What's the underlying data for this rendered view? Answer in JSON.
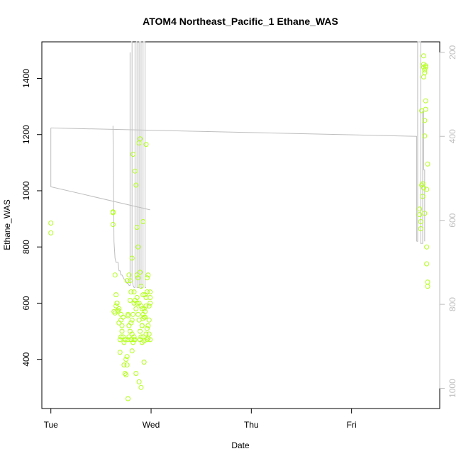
{
  "chart_data": {
    "type": "scatter",
    "title": "ATOM4 Northeast_Pacific_1 Ethane_WAS",
    "xlabel": "Date",
    "ylabel": "Ethane_WAS",
    "x_unit": "days since Tuesday 00:00",
    "xlim": [
      -0.09,
      3.88
    ],
    "ylim": [
      225,
      1530
    ],
    "x_ticks": [
      {
        "value": 0,
        "label": "Tue"
      },
      {
        "value": 1,
        "label": "Wed"
      },
      {
        "value": 2,
        "label": "Thu"
      },
      {
        "value": 3,
        "label": "Fri"
      }
    ],
    "y_ticks": [
      400,
      600,
      800,
      1000,
      1200,
      1400
    ],
    "right_axis": {
      "description": "altitude (pressure) trace, inverted",
      "ylim": [
        1048,
        175
      ],
      "ticks": [
        200,
        400,
        600,
        800,
        1000
      ]
    },
    "series": [
      {
        "name": "Ethane_WAS",
        "kind": "points",
        "color": "#b3ff1a",
        "x": [
          0.0,
          0.0,
          0.62,
          0.62,
          0.62,
          0.63,
          0.64,
          0.64,
          0.65,
          0.65,
          0.66,
          0.66,
          0.67,
          0.67,
          0.68,
          0.68,
          0.69,
          0.69,
          0.7,
          0.7,
          0.7,
          0.71,
          0.71,
          0.72,
          0.72,
          0.73,
          0.73,
          0.74,
          0.74,
          0.75,
          0.75,
          0.76,
          0.76,
          0.77,
          0.77,
          0.77,
          0.78,
          0.78,
          0.78,
          0.79,
          0.79,
          0.79,
          0.8,
          0.8,
          0.8,
          0.81,
          0.81,
          0.81,
          0.82,
          0.82,
          0.82,
          0.83,
          0.83,
          0.83,
          0.84,
          0.84,
          0.84,
          0.85,
          0.85,
          0.85,
          0.86,
          0.86,
          0.86,
          0.87,
          0.87,
          0.87,
          0.88,
          0.88,
          0.88,
          0.89,
          0.89,
          0.89,
          0.9,
          0.9,
          0.9,
          0.91,
          0.91,
          0.91,
          0.92,
          0.92,
          0.92,
          0.93,
          0.93,
          0.93,
          0.94,
          0.94,
          0.94,
          0.95,
          0.95,
          0.95,
          0.96,
          0.96,
          0.96,
          0.97,
          0.97,
          0.97,
          0.98,
          0.98,
          0.98,
          0.99,
          0.99,
          0.99,
          0.99,
          0.83,
          0.88,
          0.9,
          0.91,
          0.92,
          0.93,
          0.81,
          0.89,
          0.95,
          0.76,
          0.77,
          0.8,
          0.86,
          0.92,
          0.96,
          3.68,
          3.68,
          3.69,
          3.69,
          3.7,
          3.7,
          3.71,
          3.71,
          3.72,
          3.72,
          3.72,
          3.72,
          3.73,
          3.73,
          3.73,
          3.73,
          3.74,
          3.74,
          3.74,
          3.74,
          3.75,
          3.75,
          3.75,
          3.76,
          3.76,
          3.76,
          3.72,
          3.73
        ],
        "y": [
          885,
          850,
          925,
          922,
          880,
          570,
          565,
          700,
          590,
          630,
          600,
          600,
          575,
          570,
          580,
          530,
          470,
          425,
          480,
          560,
          540,
          520,
          500,
          550,
          480,
          460,
          380,
          350,
          470,
          345,
          400,
          410,
          380,
          260,
          470,
          560,
          520,
          480,
          700,
          500,
          680,
          610,
          470,
          530,
          640,
          490,
          540,
          760,
          460,
          560,
          1130,
          640,
          600,
          480,
          470,
          610,
          1070,
          350,
          580,
          1020,
          620,
          700,
          870,
          690,
          560,
          800,
          600,
          540,
          1170,
          470,
          500,
          1185,
          480,
          590,
          660,
          520,
          460,
          580,
          545,
          630,
          890,
          580,
          465,
          550,
          550,
          570,
          630,
          590,
          620,
          490,
          690,
          510,
          470,
          475,
          700,
          520,
          490,
          590,
          540,
          470,
          640,
          600,
          620,
          470,
          320,
          300,
          520,
          560,
          390,
          430,
          710,
          1165,
          680,
          555,
          470,
          600,
          480,
          640,
          935,
          915,
          890,
          865,
          1285,
          1020,
          1025,
          980,
          1480,
          1450,
          1440,
          1405,
          1430,
          1420,
          1250,
          1195,
          1445,
          1440,
          1290,
          1320,
          1005,
          800,
          740,
          675,
          660,
          1095,
          1010,
          920
        ],
        "marker": "open-circle"
      },
      {
        "name": "altitude",
        "kind": "line",
        "axis": "right",
        "color": "#bebebe",
        "segments": [
          {
            "x": [
              0.0,
              0.0,
              0.0,
              0.99,
              0.99
            ],
            "y": [
              380,
              380,
              520,
              575,
              575
            ]
          },
          {
            "x": [
              0.0,
              3.65,
              3.65,
              3.65
            ],
            "y": [
              380,
              400,
              400,
              650
            ]
          },
          {
            "x": [
              0.62,
              0.62,
              0.63,
              0.64,
              0.65,
              0.66,
              0.67,
              0.68,
              0.69,
              0.7,
              0.71,
              0.72,
              0.73,
              0.74,
              0.75,
              0.76,
              0.77,
              0.78
            ],
            "y": [
              375,
              375,
              650,
              690,
              700,
              700,
              700,
              720,
              720,
              730,
              730,
              735,
              740,
              740,
              745,
              750,
              750,
              755
            ]
          },
          {
            "x": [
              0.78,
              0.79,
              0.79,
              0.79
            ],
            "y": [
              755,
              755,
              200,
              200
            ]
          },
          {
            "x": [
              0.8,
              0.81,
              0.81,
              0.82,
              0.83
            ],
            "y": [
              175,
              175,
              740,
              755,
              760
            ]
          },
          {
            "x": [
              0.83,
              0.84,
              0.84,
              0.84
            ],
            "y": [
              760,
              760,
              175,
              175
            ]
          },
          {
            "x": [
              0.85,
              0.86,
              0.86,
              0.87
            ],
            "y": [
              175,
              175,
              760,
              760
            ]
          },
          {
            "x": [
              0.87,
              0.88,
              0.88,
              0.89
            ],
            "y": [
              760,
              760,
              175,
              175
            ]
          },
          {
            "x": [
              0.89,
              0.9,
              0.9,
              0.91
            ],
            "y": [
              175,
              175,
              760,
              760
            ]
          },
          {
            "x": [
              0.91,
              0.92,
              0.92,
              0.93
            ],
            "y": [
              760,
              760,
              175,
              175
            ]
          },
          {
            "x": [
              0.93,
              0.94,
              0.94,
              0.95
            ],
            "y": [
              175,
              175,
              760,
              760
            ]
          },
          {
            "x": [
              3.65,
              3.66,
              3.66,
              3.67,
              3.68
            ],
            "y": [
              650,
              650,
              175,
              175,
              175
            ]
          },
          {
            "x": [
              3.68,
              3.69,
              3.69,
              3.7
            ],
            "y": [
              175,
              175,
              655,
              655
            ]
          },
          {
            "x": [
              3.7,
              3.71,
              3.71,
              3.72,
              3.72
            ],
            "y": [
              655,
              655,
              340,
              340,
              480
            ]
          },
          {
            "x": [
              3.72,
              3.73,
              3.73
            ],
            "y": [
              480,
              480,
              650
            ]
          }
        ]
      }
    ],
    "grid": false,
    "legend": "none"
  }
}
